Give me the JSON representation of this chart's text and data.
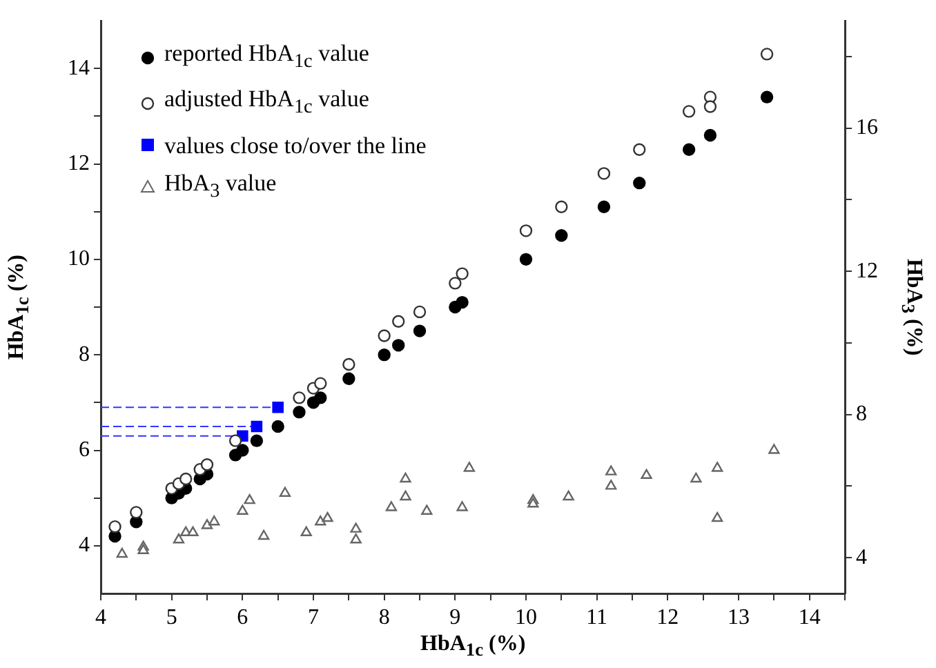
{
  "chart_data": {
    "type": "scatter",
    "xlabel": "HbA$_{1c}$ (%)",
    "ylabel": "HbA$_{1c}$ (%)",
    "y2label": "HbA$_{3}$ (%)",
    "xlim": [
      4,
      14.5
    ],
    "xticks": [
      4,
      {
        "value": 4.5,
        "label": null
      },
      5,
      {
        "value": 5.5,
        "label": null
      },
      6,
      {
        "value": 6.5,
        "label": null
      },
      7,
      {
        "value": 7.5,
        "label": null
      },
      8,
      {
        "value": 8.5,
        "label": null
      },
      9,
      {
        "value": 9.5,
        "label": null
      },
      10,
      {
        "value": 10.5,
        "label": null
      },
      11,
      {
        "value": 11.5,
        "label": null
      },
      12,
      {
        "value": 12.5,
        "label": null
      },
      13,
      {
        "value": 13.5,
        "label": null
      },
      14,
      {
        "value": 14.5,
        "label": null
      }
    ],
    "ylim": [
      3,
      15
    ],
    "yticks": [
      4,
      {
        "value": 5,
        "label": null
      },
      6,
      {
        "value": 7,
        "label": null
      },
      8,
      {
        "value": 9,
        "label": null
      },
      10,
      {
        "value": 11,
        "label": null
      },
      12,
      {
        "value": 13,
        "label": null
      },
      14
    ],
    "y2lim": [
      3,
      19
    ],
    "y2ticks": [
      4,
      {
        "value": 6,
        "label": null
      },
      8,
      {
        "value": 10,
        "label": null
      },
      12,
      {
        "value": 14,
        "label": null
      },
      16,
      {
        "value": 18,
        "label": null
      }
    ],
    "grid": false,
    "legend": "top left",
    "series": [
      {
        "name": "reported HbA$_{1c}$ value",
        "color": "#000000",
        "marker": "circle",
        "x": [
          4.2,
          4.5,
          5.0,
          5.1,
          5.2,
          5.4,
          5.5,
          5.9,
          6.0,
          6.2,
          6.5,
          6.8,
          7.0,
          7.1,
          7.5,
          8.0,
          8.2,
          8.5,
          9.0,
          9.1,
          10.0,
          10.5,
          11.1,
          11.6,
          12.3,
          12.6,
          13.4
        ],
        "values": [
          4.2,
          4.5,
          5.0,
          5.1,
          5.2,
          5.4,
          5.5,
          5.9,
          6.0,
          6.2,
          6.5,
          6.8,
          7.0,
          7.1,
          7.5,
          8.0,
          8.2,
          8.5,
          9.0,
          9.1,
          10.0,
          10.5,
          11.1,
          11.6,
          12.3,
          12.6,
          13.4
        ]
      },
      {
        "name": "adjusted HbA$_{1c}$ value",
        "color": "#333333",
        "marker": "circle",
        "x": [
          4.2,
          4.5,
          5.0,
          5.1,
          5.2,
          5.4,
          5.5,
          5.9,
          6.8,
          7.0,
          7.1,
          7.5,
          8.0,
          8.2,
          8.5,
          9.0,
          9.1,
          10.0,
          10.5,
          11.1,
          11.6,
          12.3,
          12.6,
          12.6,
          13.4
        ],
        "values": [
          4.4,
          4.7,
          5.2,
          5.3,
          5.4,
          5.6,
          5.7,
          6.2,
          7.1,
          7.3,
          7.4,
          7.8,
          8.4,
          8.7,
          8.9,
          9.5,
          9.7,
          10.6,
          11.1,
          11.8,
          12.3,
          13.1,
          13.4,
          13.2,
          14.3
        ]
      },
      {
        "name": "values close to/over the line",
        "color": "#0000ff",
        "marker": "square",
        "x": [
          6.0,
          6.2,
          6.5
        ],
        "values": [
          6.3,
          6.5,
          6.9
        ]
      },
      {
        "name": "HbA$_{3}$ value",
        "color": "#666666",
        "marker": "triangle",
        "axis": "y2",
        "x": [
          4.3,
          4.6,
          4.6,
          5.1,
          5.2,
          5.3,
          5.5,
          5.6,
          6.0,
          6.1,
          6.3,
          6.6,
          6.9,
          7.1,
          7.2,
          7.6,
          7.6,
          8.1,
          8.3,
          8.3,
          8.6,
          9.1,
          9.2,
          10.1,
          10.1,
          10.6,
          11.2,
          11.2,
          11.7,
          12.4,
          12.7,
          12.7,
          13.5
        ],
        "values": [
          4.1,
          4.3,
          4.2,
          4.5,
          4.7,
          4.7,
          4.9,
          5.0,
          5.3,
          5.6,
          4.6,
          5.8,
          4.7,
          5.0,
          5.1,
          4.8,
          4.5,
          5.4,
          6.2,
          5.7,
          5.3,
          5.4,
          6.5,
          5.6,
          5.5,
          5.7,
          6.4,
          6.0,
          6.3,
          6.2,
          6.5,
          5.1,
          7.0
        ]
      },
      {
        "type": "line",
        "color": "#3333ff",
        "line_style": "dashed",
        "marker": "none",
        "x": [
          4,
          6.5
        ],
        "values": [
          6.9,
          6.9
        ]
      },
      {
        "type": "line",
        "color": "#3333ff",
        "line_style": "dashed",
        "marker": "none",
        "x": [
          4,
          6.2
        ],
        "values": [
          6.5,
          6.5
        ]
      },
      {
        "type": "line",
        "color": "#3333ff",
        "line_style": "dashed",
        "marker": "none",
        "x": [
          4,
          6.0
        ],
        "values": [
          6.3,
          6.3
        ]
      }
    ]
  }
}
